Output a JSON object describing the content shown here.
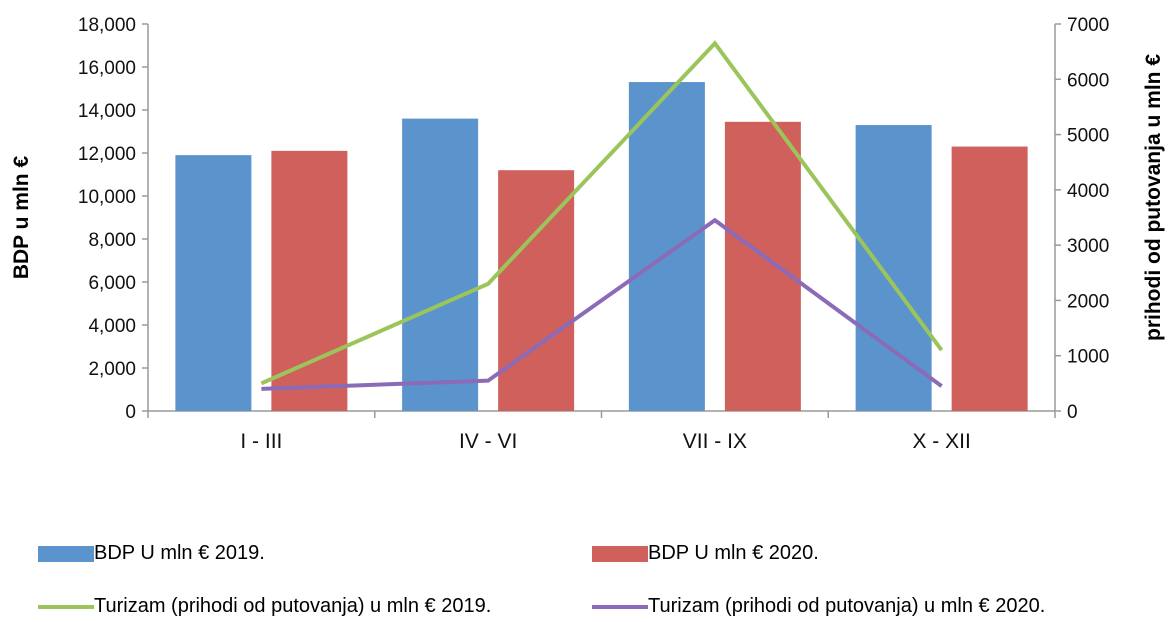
{
  "chart_data": {
    "type": "bar",
    "categories": [
      "I - III",
      "IV - VI",
      "VII - IX",
      "X - XII"
    ],
    "series": [
      {
        "name": "BDP U mln € 2019.",
        "kind": "bar",
        "axis": "left",
        "color": "#5b93cc",
        "values": [
          11900,
          13600,
          15300,
          13300
        ]
      },
      {
        "name": "BDP U mln € 2020.",
        "kind": "bar",
        "axis": "left",
        "color": "#d0605c",
        "values": [
          12100,
          11200,
          13450,
          12300
        ]
      },
      {
        "name": "Turizam (prihodi od putovanja) u mln € 2019.",
        "kind": "line",
        "axis": "right",
        "color": "#9bc55a",
        "values": [
          500,
          2300,
          6650,
          1100
        ]
      },
      {
        "name": "Turizam (prihodi od putovanja) u mln € 2020.",
        "kind": "line",
        "axis": "right",
        "color": "#8b6bb8",
        "values": [
          400,
          550,
          3450,
          450
        ]
      }
    ],
    "ylabel": "BDP u mln €",
    "y2label": "prihodi od putovanja u mln €",
    "ylim": [
      0,
      18000
    ],
    "y2lim": [
      0,
      7000
    ],
    "yticks": [
      "0",
      "2,000",
      "4,000",
      "6,000",
      "8,000",
      "10,000",
      "12,000",
      "14,000",
      "16,000",
      "18,000"
    ],
    "y2ticks": [
      "0",
      "1000",
      "2000",
      "3000",
      "4000",
      "5000",
      "6000",
      "7000"
    ],
    "grid": false,
    "legend_position": "bottom"
  }
}
